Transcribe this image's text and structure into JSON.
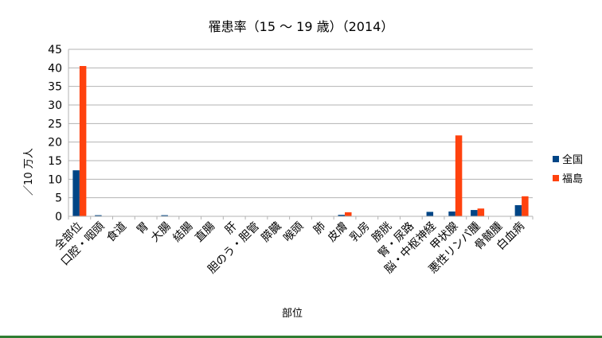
{
  "chart_data": {
    "type": "bar",
    "title": "罹患率（15 ～ 19 歳）（2014）",
    "xlabel": "部位",
    "ylabel": "／10 万人",
    "ylim": [
      0,
      45
    ],
    "yticks": [
      0,
      5,
      10,
      15,
      20,
      25,
      30,
      35,
      40,
      45
    ],
    "grid": true,
    "legend_position": "right",
    "categories": [
      "全部位",
      "口腔・咽頭",
      "食道",
      "胃",
      "大腸",
      "結腸",
      "直腸",
      "肝",
      "胆のう・胆管",
      "膵臓",
      "喉頭",
      "肺",
      "皮膚",
      "乳房",
      "膀胱",
      "腎・尿路",
      "脳・中枢神経",
      "甲状腺",
      "悪性リンパ腫",
      "骨髄腫",
      "白血病"
    ],
    "series": [
      {
        "name": "全国",
        "color": "#004586",
        "values": [
          12.4,
          0.3,
          0.0,
          0.1,
          0.3,
          0.1,
          0.0,
          0.1,
          0.0,
          0.0,
          0.0,
          0.1,
          0.4,
          0.0,
          0.0,
          0.1,
          1.2,
          1.3,
          1.7,
          0.0,
          3.0
        ]
      },
      {
        "name": "福島",
        "color": "#ff420e",
        "values": [
          40.5,
          0.0,
          0.0,
          0.0,
          0.0,
          0.0,
          0.0,
          0.0,
          0.0,
          0.0,
          0.0,
          0.0,
          1.1,
          0.0,
          0.0,
          0.0,
          0.0,
          21.8,
          2.1,
          0.0,
          5.4
        ]
      }
    ]
  }
}
